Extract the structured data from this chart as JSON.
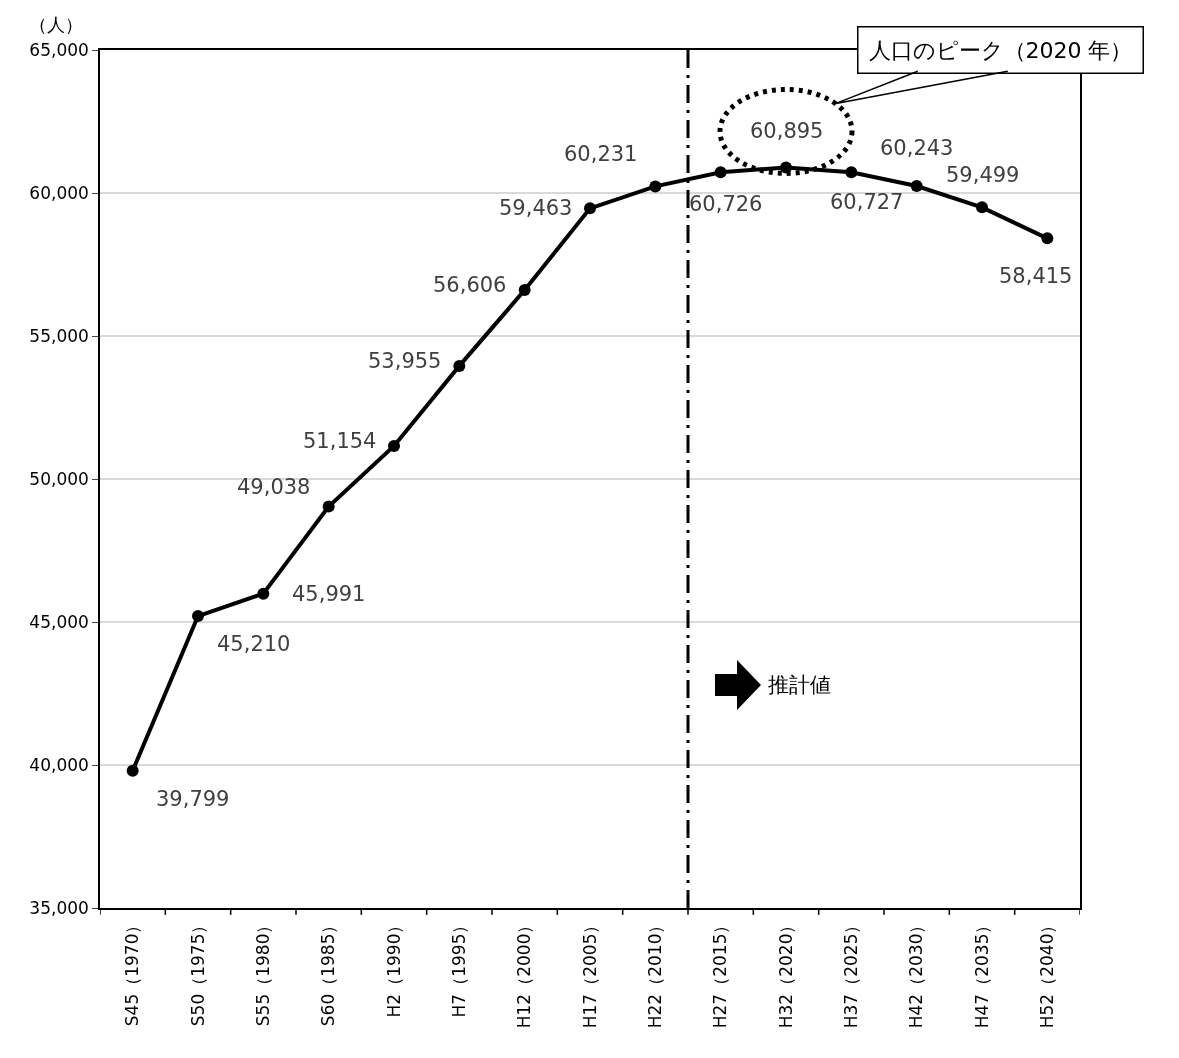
{
  "chart_data": {
    "type": "line",
    "ylabel": "（人）",
    "categories": [
      "S45（1970）",
      "S50（1975）",
      "S55（1980）",
      "S60（1985）",
      "H2（1990）",
      "H7（1995）",
      "H12（2000）",
      "H17（2005）",
      "H22（2010）",
      "H27（2015）",
      "H32（2020）",
      "H37（2025）",
      "H42（2030）",
      "H47（2035）",
      "H52（2040）"
    ],
    "series": [
      {
        "color": "#000000",
        "values": [
          39799,
          45210,
          45991,
          49038,
          51154,
          53955,
          56606,
          59463,
          60231,
          60726,
          60895,
          60727,
          60243,
          59499,
          58415
        ],
        "value_labels": [
          "39,799",
          "45,210",
          "45,991",
          "49,038",
          "51,154",
          "53,955",
          "56,606",
          "59,463",
          "60,231",
          "60,726",
          "60,895",
          "60,727",
          "60,243",
          "59,499",
          "58,415"
        ]
      }
    ],
    "ylim": [
      35000,
      65000
    ],
    "yticks": [
      {
        "value": 35000,
        "label": "35,000"
      },
      {
        "value": 40000,
        "label": "40,000"
      },
      {
        "value": 45000,
        "label": "45,000"
      },
      {
        "value": 50000,
        "label": "50,000"
      },
      {
        "value": 55000,
        "label": "55,000"
      },
      {
        "value": 60000,
        "label": "60,000"
      },
      {
        "value": 65000,
        "label": "65,000"
      }
    ],
    "grid": "y",
    "marker": "circle",
    "line_style": "solid",
    "ref_lines": [
      {
        "axis": "x",
        "value": "H22（2010）",
        "line_style": "dashdot",
        "color": "#000000"
      }
    ],
    "annotations": [
      "人口のピーク（2020 年）",
      "推計値"
    ]
  }
}
